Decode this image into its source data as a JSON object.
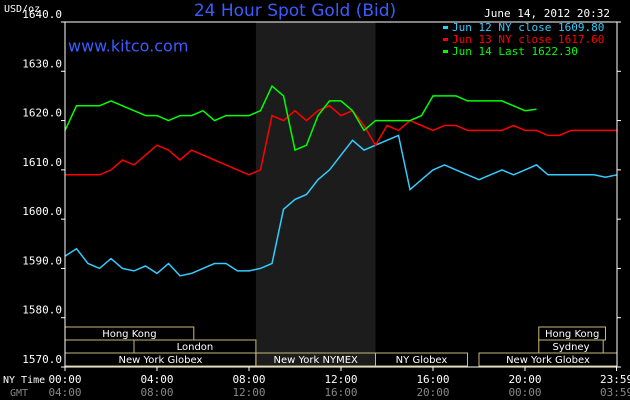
{
  "chart_data": {
    "type": "line",
    "title": "24 Hour Spot Gold (Bid)",
    "date": "June 14, 2012 20:32",
    "watermark": "www.kitco.com",
    "y_label": "USD/oz",
    "x_row_label": "NY Time",
    "x2_row_label": "GMT",
    "x": [
      0,
      0.5,
      1,
      1.5,
      2,
      2.5,
      3,
      3.5,
      4,
      4.5,
      5,
      5.5,
      6,
      6.5,
      7,
      7.5,
      8,
      8.5,
      9,
      9.5,
      10,
      10.5,
      11,
      11.5,
      12,
      12.5,
      13,
      13.5,
      14,
      14.5,
      15,
      15.5,
      16,
      16.5,
      17,
      17.5,
      18,
      18.5,
      19,
      19.5,
      20,
      20.5,
      21,
      21.5,
      22,
      22.5,
      23,
      23.5,
      24
    ],
    "series": [
      {
        "name": "Jun 12 NY close 1609.80",
        "color": "#33ccff",
        "values": [
          1592.5,
          1594,
          1591,
          1590,
          1592,
          1590,
          1589.5,
          1590.5,
          1589,
          1591,
          1588.5,
          1589,
          1590,
          1591,
          1591,
          1589.5,
          1589.5,
          1590,
          1591,
          1602,
          1604,
          1605,
          1608,
          1610,
          1613,
          1616,
          1614,
          1615,
          1616,
          1617,
          1606,
          1608,
          1610,
          1611,
          1610,
          1609,
          1608,
          1609,
          1610,
          1609,
          1610,
          1611,
          1609,
          1609,
          1609,
          1609,
          1609,
          1608.5,
          1609
        ]
      },
      {
        "name": "Jun 13 NY close 1617.60",
        "color": "#ff0000",
        "values": [
          1609,
          1609,
          1609,
          1609,
          1610,
          1612,
          1611,
          1613,
          1615,
          1614,
          1612,
          1614,
          1613,
          1612,
          1611,
          1610,
          1609,
          1610,
          1621,
          1620,
          1622,
          1620,
          1622,
          1623,
          1621,
          1622,
          1619,
          1615,
          1619,
          1618,
          1620,
          1619,
          1618,
          1619,
          1619,
          1618,
          1618,
          1618,
          1618,
          1619,
          1618,
          1618,
          1617,
          1617,
          1618,
          1618,
          1618,
          1618,
          1618
        ]
      },
      {
        "name": "Jun 14 Last 1622.30",
        "color": "#00ff00",
        "values": [
          1618,
          1623,
          1623,
          1623,
          1624,
          1623,
          1622,
          1621,
          1621,
          1620,
          1621,
          1621,
          1622,
          1620,
          1621,
          1621,
          1621,
          1622,
          1627,
          1625,
          1614,
          1615,
          1621,
          1624,
          1624,
          1622,
          1618,
          1620,
          1620,
          1620,
          1620,
          1621,
          1625,
          1625,
          1625,
          1624,
          1624,
          1624,
          1624,
          1623,
          1622,
          1622.3,
          null,
          null,
          null,
          null,
          null,
          null,
          null
        ]
      }
    ],
    "xlim": [
      0,
      24
    ],
    "xticks": [
      {
        "value": 0,
        "label": "00:00"
      },
      {
        "value": 4,
        "label": "04:00"
      },
      {
        "value": 8,
        "label": "08:00"
      },
      {
        "value": 12,
        "label": "12:00"
      },
      {
        "value": 16,
        "label": "16:00"
      },
      {
        "value": 20,
        "label": "20:00"
      },
      {
        "value": 23.98,
        "label": "23:59"
      }
    ],
    "x2ticks": [
      {
        "value": 0,
        "label": "04:00"
      },
      {
        "value": 4,
        "label": "08:00"
      },
      {
        "value": 8,
        "label": "12:00"
      },
      {
        "value": 12,
        "label": "16:00"
      },
      {
        "value": 16,
        "label": "20:00"
      },
      {
        "value": 20,
        "label": "00:00"
      },
      {
        "value": 23.98,
        "label": "03:59"
      }
    ],
    "ylim": [
      1570,
      1640
    ],
    "yticks": [
      {
        "value": 1570,
        "label": "1570.0"
      },
      {
        "value": 1580,
        "label": "1580.0"
      },
      {
        "value": 1590,
        "label": "1590.0"
      },
      {
        "value": 1600,
        "label": "1600.0"
      },
      {
        "value": 1610,
        "label": "1610.0"
      },
      {
        "value": 1620,
        "label": "1620.0"
      },
      {
        "value": 1630,
        "label": "1630.0"
      },
      {
        "value": 1640,
        "label": "1640.0"
      }
    ],
    "grid": false,
    "highlight": [
      8.3,
      13.5
    ],
    "session_rows": [
      [
        {
          "name": "Hong Kong",
          "start": 0,
          "end": 5.6
        },
        {
          "name": "Hong Kong",
          "start": 20.6,
          "end": 23.5
        }
      ],
      [
        {
          "name": "London",
          "start": 3,
          "end": 8.3
        },
        {
          "name": "Sydney",
          "start": 20.6,
          "end": 23.4
        }
      ],
      [
        {
          "name": "New York Globex",
          "start": 0,
          "end": 8.3
        },
        {
          "name": "New York NYMEX",
          "start": 8.3,
          "end": 13.5
        },
        {
          "name": "NY Globex",
          "start": 13.5,
          "end": 17.5
        },
        {
          "name": "New York Globex",
          "start": 18,
          "end": 24
        }
      ]
    ]
  }
}
